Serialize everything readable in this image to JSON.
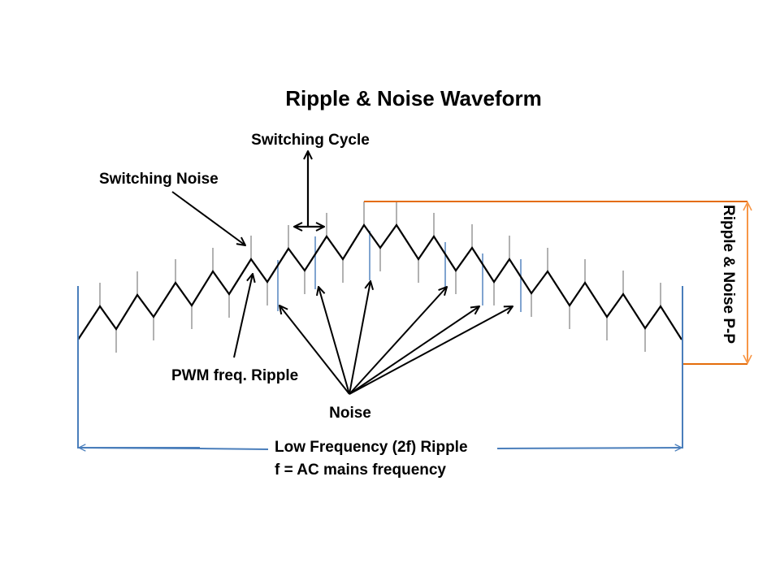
{
  "title": "Ripple & Noise Waveform",
  "labels": {
    "switching_cycle": "Switching Cycle",
    "switching_noise": "Switching Noise",
    "pwm_ripple": "PWM freq. Ripple",
    "noise": "Noise",
    "low_freq_ripple": "Low Frequency (2f)  Ripple",
    "ac_mains": "f = AC mains frequency",
    "ripple_noise_pp": "Ripple & Noise P-P"
  },
  "colors": {
    "waveform": "#000000",
    "spike": "#7f7f7f",
    "noise_line": "#4a7ebb",
    "boundary": "#4a7ebb",
    "pp_marker": "#e46c0a",
    "pp_arrow": "#f79646"
  }
}
